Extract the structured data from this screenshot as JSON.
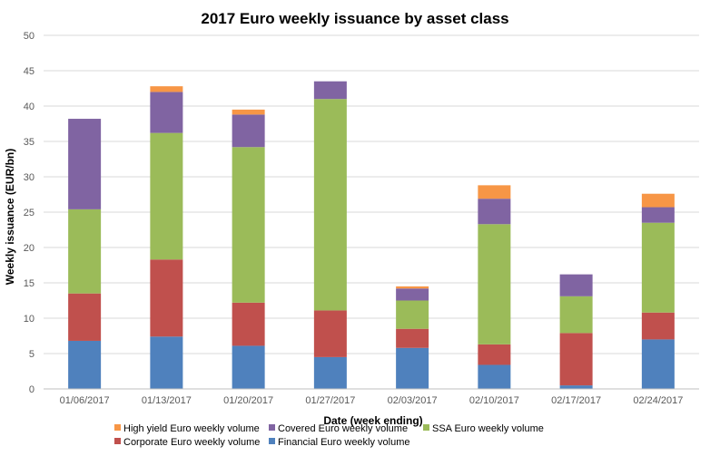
{
  "chart_data": {
    "type": "bar",
    "stacked": true,
    "title": "2017 Euro weekly issuance by asset class",
    "xlabel": "Date (week ending)",
    "ylabel": "Weekly issuance (EUR/bn)",
    "ylim": [
      0,
      50
    ],
    "yticks": [
      0,
      5,
      10,
      15,
      20,
      25,
      30,
      35,
      40,
      45,
      50
    ],
    "grid": true,
    "legend_position": "bottom",
    "categories": [
      "01/06/2017",
      "01/13/2017",
      "01/20/2017",
      "01/27/2017",
      "02/03/2017",
      "02/10/2017",
      "02/17/2017",
      "02/24/2017"
    ],
    "series": [
      {
        "name": "Financial Euro weekly volume",
        "color": "#4F81BD",
        "values": [
          6.8,
          7.4,
          6.1,
          4.5,
          5.8,
          3.4,
          0.5,
          7.0
        ]
      },
      {
        "name": "Corporate Euro weekly volume",
        "color": "#C0504D",
        "values": [
          6.7,
          10.9,
          6.1,
          6.6,
          2.7,
          2.9,
          7.4,
          3.8
        ]
      },
      {
        "name": "SSA Euro weekly volume",
        "color": "#9BBB59",
        "values": [
          11.9,
          17.9,
          22.0,
          29.9,
          4.0,
          17.0,
          5.2,
          12.7
        ]
      },
      {
        "name": "Covered Euro weekly volume",
        "color": "#8064A2",
        "values": [
          12.8,
          5.8,
          4.6,
          2.5,
          1.7,
          3.6,
          3.1,
          2.2
        ]
      },
      {
        "name": "High yield Euro weekly volume",
        "color": "#F79646",
        "values": [
          0.0,
          0.8,
          0.7,
          0.0,
          0.3,
          1.9,
          0.0,
          1.9
        ]
      }
    ],
    "legend_order": [
      "High yield Euro weekly volume",
      "Covered Euro weekly volume",
      "SSA Euro weekly volume",
      "Corporate Euro weekly volume",
      "Financial Euro weekly volume"
    ]
  }
}
